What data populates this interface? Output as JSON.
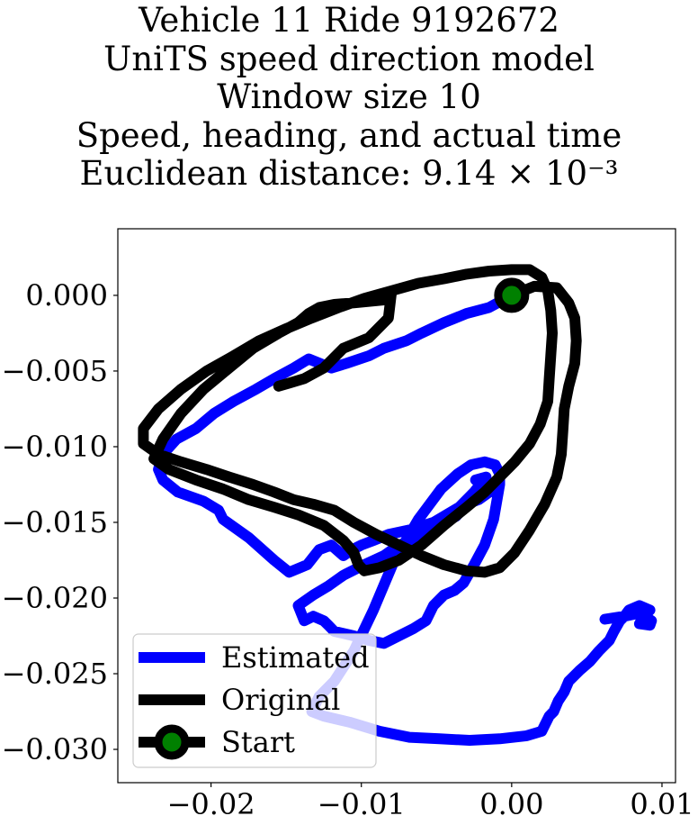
{
  "chart_data": {
    "type": "line",
    "title_lines": [
      "Vehicle 11 Ride 9192672",
      "UniTS speed direction model",
      "Window size 10",
      "Speed, heading, and actual time",
      "Euclidean distance: 9.14 × 10⁻³"
    ],
    "xlabel": "",
    "ylabel": "",
    "xlim": [
      -0.0262,
      0.0109
    ],
    "ylim": [
      -0.0322,
      0.0044
    ],
    "x_ticks": [
      -0.02,
      -0.01,
      0.0,
      0.01
    ],
    "x_tick_labels": [
      "−0.02",
      "−0.01",
      "0.00",
      "0.01"
    ],
    "y_ticks": [
      0.0,
      -0.005,
      -0.01,
      -0.015,
      -0.02,
      -0.025,
      -0.03
    ],
    "y_tick_labels": [
      "0.000",
      "−0.005",
      "−0.010",
      "−0.015",
      "−0.020",
      "−0.025",
      "−0.030"
    ],
    "grid": false,
    "legend_position": "lower-left",
    "series": [
      {
        "name": "Estimated",
        "color": "#0000ff",
        "x": [
          0.0,
          -0.0015,
          -0.003,
          -0.0045,
          -0.006,
          -0.007,
          -0.0085,
          -0.0095,
          -0.011,
          -0.012,
          -0.0135,
          -0.0145,
          -0.0158,
          -0.017,
          -0.0185,
          -0.0198,
          -0.021,
          -0.0223,
          -0.0232,
          -0.0235,
          -0.0232,
          -0.0222,
          -0.0205,
          -0.0195,
          -0.0192,
          -0.0175,
          -0.0158,
          -0.0148,
          -0.0136,
          -0.0128,
          -0.012,
          -0.0112,
          -0.0106,
          -0.01,
          -0.0092,
          -0.0082,
          -0.0068,
          -0.0052,
          -0.0035,
          -0.0025,
          -0.0017,
          -0.0024,
          -0.0012,
          -0.0022,
          -0.003,
          -0.0037,
          -0.0045,
          -0.0052,
          -0.0062,
          -0.0075,
          -0.0085,
          -0.0098,
          -0.0112,
          -0.0122,
          -0.0132,
          -0.0142,
          -0.0138,
          -0.0132,
          -0.0125,
          -0.0122,
          -0.0118,
          -0.0105,
          -0.0095,
          -0.0085,
          -0.0075,
          -0.0065,
          -0.0057,
          -0.0052,
          -0.0045,
          -0.0038,
          -0.0032,
          -0.0025,
          -0.0018,
          -0.0012,
          -0.0008,
          -0.0008,
          -0.0011,
          -0.0018,
          -0.0027,
          -0.0036,
          -0.0047,
          -0.0062,
          -0.0078,
          -0.0092,
          -0.0105,
          -0.0118,
          -0.0128,
          -0.0133,
          -0.0125,
          -0.0108,
          -0.0088,
          -0.0068,
          -0.0048,
          -0.0028,
          -0.0008,
          0.001,
          0.002,
          0.0022,
          0.0025,
          0.0028,
          0.0031,
          0.0035,
          0.0038,
          0.0045,
          0.0052,
          0.0058,
          0.0065,
          0.0068,
          0.0072,
          0.0075,
          0.0078,
          0.0085,
          0.0092,
          0.0088,
          0.0085,
          0.0092,
          0.0093,
          0.0085,
          0.0075,
          0.0062
        ],
        "y": [
          0.0,
          -0.0008,
          -0.0012,
          -0.0018,
          -0.0025,
          -0.003,
          -0.0035,
          -0.004,
          -0.0045,
          -0.0048,
          -0.0042,
          -0.0048,
          -0.0055,
          -0.0062,
          -0.007,
          -0.0078,
          -0.0088,
          -0.0095,
          -0.0105,
          -0.0115,
          -0.0122,
          -0.013,
          -0.0136,
          -0.0142,
          -0.0148,
          -0.016,
          -0.0175,
          -0.0183,
          -0.0178,
          -0.0168,
          -0.0165,
          -0.0172,
          -0.0168,
          -0.0165,
          -0.0162,
          -0.0158,
          -0.0155,
          -0.015,
          -0.014,
          -0.013,
          -0.012,
          -0.0122,
          -0.0128,
          -0.0135,
          -0.0138,
          -0.0146,
          -0.015,
          -0.0155,
          -0.016,
          -0.0165,
          -0.0172,
          -0.0178,
          -0.0185,
          -0.0192,
          -0.0198,
          -0.0205,
          -0.0215,
          -0.0212,
          -0.0215,
          -0.0218,
          -0.0222,
          -0.0225,
          -0.0228,
          -0.023,
          -0.0225,
          -0.022,
          -0.0215,
          -0.0205,
          -0.0198,
          -0.0195,
          -0.019,
          -0.0178,
          -0.0165,
          -0.0148,
          -0.0125,
          -0.0118,
          -0.0112,
          -0.011,
          -0.0112,
          -0.0118,
          -0.0128,
          -0.0148,
          -0.0175,
          -0.0208,
          -0.0235,
          -0.0255,
          -0.0265,
          -0.0275,
          -0.0278,
          -0.0282,
          -0.0288,
          -0.0292,
          -0.0293,
          -0.0294,
          -0.0293,
          -0.0291,
          -0.0288,
          -0.0284,
          -0.0278,
          -0.0275,
          -0.0268,
          -0.0262,
          -0.0255,
          -0.0248,
          -0.0242,
          -0.0235,
          -0.0228,
          -0.0222,
          -0.0215,
          -0.0212,
          -0.0208,
          -0.0205,
          -0.0208,
          -0.0212,
          -0.0217,
          -0.0218,
          -0.0215,
          -0.021,
          -0.0212,
          -0.0214
        ]
      },
      {
        "name": "Original",
        "color": "#000000",
        "x": [
          0.0,
          0.0015,
          0.003,
          0.0038,
          0.0042,
          0.0043,
          0.0042,
          0.0038,
          0.0035,
          0.0034,
          0.0033,
          0.003,
          0.0022,
          0.0012,
          0.0002,
          -0.0008,
          -0.0018,
          -0.003,
          -0.0045,
          -0.006,
          -0.0075,
          -0.009,
          -0.0105,
          -0.0118,
          -0.0132,
          -0.0145,
          -0.0158,
          -0.0172,
          -0.0188,
          -0.0203,
          -0.022,
          -0.0235,
          -0.0245,
          -0.0245,
          -0.0235,
          -0.022,
          -0.0203,
          -0.0185,
          -0.0168,
          -0.015,
          -0.0133,
          -0.0115,
          -0.0098,
          -0.008,
          -0.0062,
          -0.0045,
          -0.003,
          -0.0015,
          0.0,
          0.0012,
          0.002,
          0.0024,
          0.0026,
          0.0027,
          0.0026,
          0.0025,
          0.0024,
          0.0019,
          0.0012,
          0.0002,
          -0.0008,
          -0.0018,
          -0.003,
          -0.0045,
          -0.006,
          -0.0075,
          -0.0088,
          -0.0098,
          -0.0102,
          -0.0105,
          -0.0112,
          -0.0125,
          -0.0142,
          -0.0158,
          -0.0175,
          -0.0192,
          -0.021,
          -0.0228,
          -0.0238,
          -0.0232,
          -0.022,
          -0.0205,
          -0.0188,
          -0.0172,
          -0.0155,
          -0.0142,
          -0.0135,
          -0.0128,
          -0.0118,
          -0.0105,
          -0.0095,
          -0.0085,
          -0.008,
          -0.0082,
          -0.0095,
          -0.0112,
          -0.0125,
          -0.0138,
          -0.0148,
          -0.0155
        ],
        "y": [
          0.0,
          0.0006,
          0.0005,
          -0.0005,
          -0.0015,
          -0.003,
          -0.0045,
          -0.006,
          -0.0075,
          -0.009,
          -0.0105,
          -0.012,
          -0.0138,
          -0.0155,
          -0.017,
          -0.018,
          -0.0183,
          -0.0182,
          -0.0178,
          -0.0172,
          -0.0165,
          -0.0158,
          -0.015,
          -0.0142,
          -0.0138,
          -0.0135,
          -0.013,
          -0.0125,
          -0.012,
          -0.0115,
          -0.011,
          -0.0105,
          -0.0098,
          -0.0088,
          -0.0075,
          -0.0062,
          -0.005,
          -0.004,
          -0.003,
          -0.0022,
          -0.0015,
          -0.0008,
          -0.0002,
          0.0003,
          0.0008,
          0.0011,
          0.0014,
          0.0016,
          0.0017,
          0.0017,
          0.0012,
          0.0003,
          -0.001,
          -0.0025,
          -0.004,
          -0.0055,
          -0.007,
          -0.0085,
          -0.0098,
          -0.011,
          -0.012,
          -0.013,
          -0.014,
          -0.0152,
          -0.0165,
          -0.0175,
          -0.018,
          -0.0182,
          -0.0178,
          -0.017,
          -0.0162,
          -0.0152,
          -0.0145,
          -0.014,
          -0.0135,
          -0.0128,
          -0.0122,
          -0.0115,
          -0.0108,
          -0.0095,
          -0.0078,
          -0.0062,
          -0.0048,
          -0.0035,
          -0.0025,
          -0.0018,
          -0.0012,
          -0.0008,
          -0.0006,
          -0.0005,
          -0.0004,
          -0.0003,
          0.0002,
          -0.0015,
          -0.0028,
          -0.0035,
          -0.0048,
          -0.0055,
          -0.0058,
          -0.006
        ]
      }
    ],
    "start_point": {
      "name": "Start",
      "x": 0.0,
      "y": 0.0,
      "marker_color": "#008000",
      "edge_color": "#000000"
    },
    "legend_entries": [
      "Estimated",
      "Original",
      "Start"
    ]
  }
}
